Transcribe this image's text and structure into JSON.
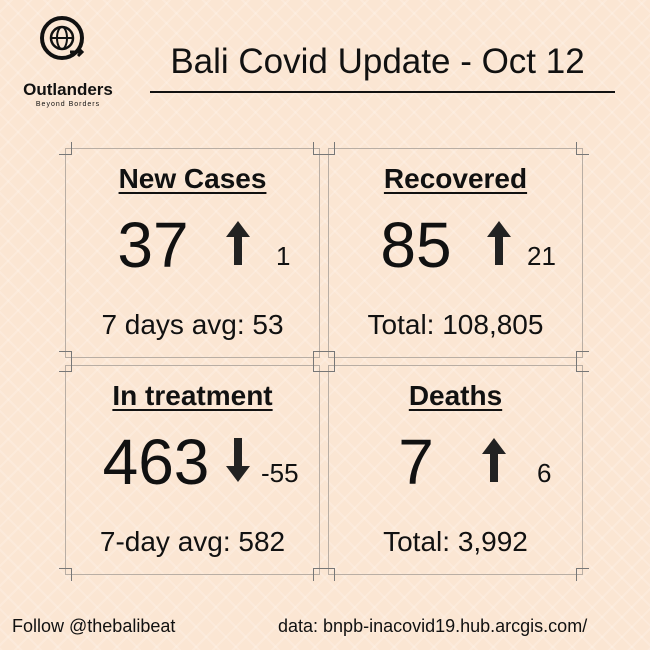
{
  "header": {
    "logo_name": "Outlanders",
    "logo_tagline": "Beyond Borders",
    "title": "Bali Covid Update - Oct 12"
  },
  "cards": [
    {
      "title": "New Cases",
      "value": 37,
      "change": 1,
      "footer": "7 days avg: 53"
    },
    {
      "title": "Recovered",
      "value": 85,
      "change": 21,
      "footer": "Total: 108,805"
    },
    {
      "title": "In treatment",
      "value": 463,
      "change": -55,
      "footer": "7-day avg: 582"
    },
    {
      "title": "Deaths",
      "value": 7,
      "change": 6,
      "footer": "Total: 3,992"
    }
  ],
  "footer": {
    "follow": "Follow @thebalibeat",
    "source": "data: bnpb-inacovid19.hub.arcgis.com/"
  }
}
